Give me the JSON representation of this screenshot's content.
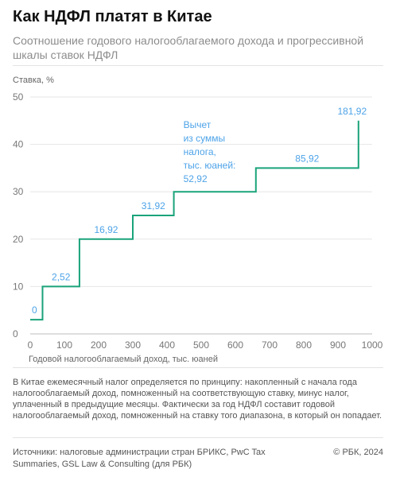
{
  "title": "Как НДФЛ платят в Китае",
  "subtitle": "Соотношение годового налогооблагаемого дохода и прогрессивной шкалы ставок НДФЛ",
  "note": "В Китае ежемесячный налог определяется по принципу: накопленный с начала года налогооблагаемый доход, помноженный на соответствующую ставку, минус налог, уплаченный в предыдущие месяцы. Фактически за год НДФЛ составит годовой налогооблагаемый доход, помноженный на ставку того диапазона, в который он попадает.",
  "sources": "Источники: налоговые администрации стран БРИКС, PwC Tax Summaries, GSL Law & Consulting (для РБК)",
  "copyright": "© РБК, 2024",
  "chart_data": {
    "type": "line",
    "step": true,
    "xlabel": "Годовой налогооблагаемый доход, тыс. юаней",
    "ylabel": "Ставка, %",
    "xlim": [
      0,
      1000
    ],
    "ylim": [
      0,
      50
    ],
    "xticks": [
      0,
      100,
      200,
      300,
      400,
      500,
      600,
      700,
      800,
      900,
      1000
    ],
    "yticks": [
      0,
      10,
      20,
      30,
      40,
      50
    ],
    "grid": "horizontal",
    "line_color": "#1aa37a",
    "label_color": "#4da3e8",
    "brackets": [
      {
        "from": 0,
        "to": 36,
        "rate": 3,
        "deduction": "0"
      },
      {
        "from": 36,
        "to": 144,
        "rate": 10,
        "deduction": "2,52"
      },
      {
        "from": 144,
        "to": 300,
        "rate": 20,
        "deduction": "16,92"
      },
      {
        "from": 300,
        "to": 420,
        "rate": 25,
        "deduction": "31,92"
      },
      {
        "from": 420,
        "to": 660,
        "rate": 30,
        "deduction": "52,92"
      },
      {
        "from": 660,
        "to": 960,
        "rate": 35,
        "deduction": "85,92"
      },
      {
        "from": 960,
        "to": 960,
        "rate": 45,
        "deduction": "181,92"
      }
    ],
    "annotation": "Вычет из суммы налога, тыс. юаней:"
  }
}
